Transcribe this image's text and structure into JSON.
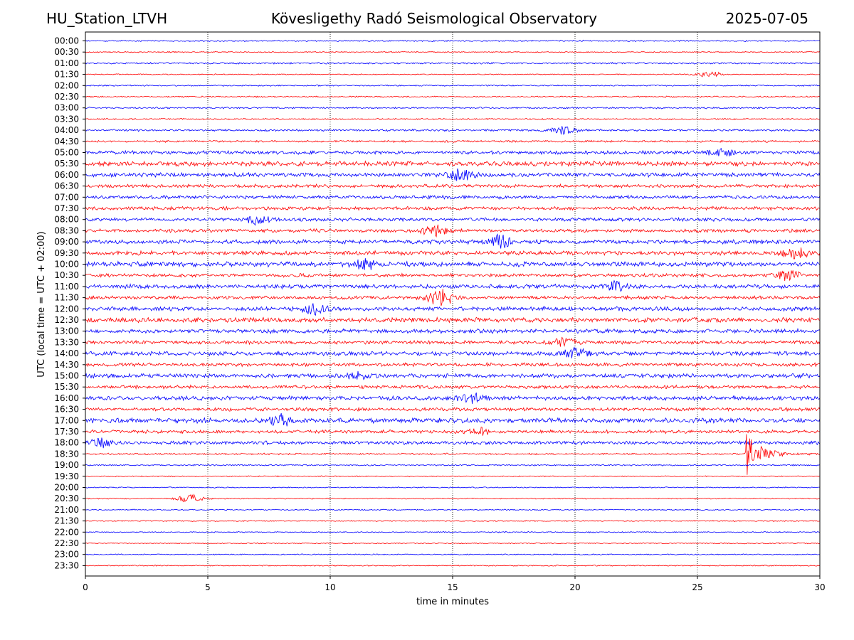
{
  "header": {
    "station": "HU_Station_LTVH",
    "title": "Kövesligethy Radó Seismological Observatory",
    "date": "2025-07-05"
  },
  "chart_data": {
    "type": "line",
    "title": "Kövesligethy Radó Seismological Observatory",
    "xlabel": "time in minutes",
    "ylabel": "UTC (local time = UTC + 02:00)",
    "xlim": [
      0,
      30
    ],
    "x_ticks": [
      0,
      5,
      10,
      15,
      20,
      25,
      30
    ],
    "grid": "vertical dotted lines at x ticks",
    "row_labels": [
      "00:00",
      "00:30",
      "01:00",
      "01:30",
      "02:00",
      "02:30",
      "03:00",
      "03:30",
      "04:00",
      "04:30",
      "05:00",
      "05:30",
      "06:00",
      "06:30",
      "07:00",
      "07:30",
      "08:00",
      "08:30",
      "09:00",
      "09:30",
      "10:00",
      "10:30",
      "11:00",
      "11:30",
      "12:00",
      "12:30",
      "13:00",
      "13:30",
      "14:00",
      "14:30",
      "15:00",
      "15:30",
      "16:00",
      "16:30",
      "17:00",
      "17:30",
      "18:00",
      "18:30",
      "19:00",
      "19:30",
      "20:00",
      "20:30",
      "21:00",
      "21:30",
      "22:00",
      "22:30",
      "23:00",
      "23:30"
    ],
    "row_colors": [
      "#0000ff",
      "#ff0000"
    ],
    "row_noise": [
      0.1,
      0.08,
      0.12,
      0.08,
      0.1,
      0.1,
      0.12,
      0.1,
      0.15,
      0.15,
      0.25,
      0.35,
      0.3,
      0.25,
      0.25,
      0.25,
      0.25,
      0.25,
      0.3,
      0.3,
      0.35,
      0.25,
      0.3,
      0.25,
      0.3,
      0.35,
      0.3,
      0.25,
      0.3,
      0.25,
      0.3,
      0.25,
      0.3,
      0.25,
      0.35,
      0.25,
      0.25,
      0.12,
      0.1,
      0.08,
      0.08,
      0.08,
      0.08,
      0.08,
      0.08,
      0.08,
      0.08,
      0.08
    ],
    "notable_events": [
      {
        "row": "01:30",
        "minute": 25.5,
        "amplitude": 0.5
      },
      {
        "row": "04:00",
        "minute": 19.5,
        "amplitude": 0.6
      },
      {
        "row": "05:00",
        "minute": 26.0,
        "amplitude": 0.7
      },
      {
        "row": "06:00",
        "minute": 15.3,
        "amplitude": 1.0
      },
      {
        "row": "08:00",
        "minute": 7.0,
        "amplitude": 0.8
      },
      {
        "row": "08:30",
        "minute": 14.3,
        "amplitude": 0.9
      },
      {
        "row": "09:00",
        "minute": 17.0,
        "amplitude": 1.1
      },
      {
        "row": "09:30",
        "minute": 29.0,
        "amplitude": 0.8
      },
      {
        "row": "10:00",
        "minute": 11.5,
        "amplitude": 0.8
      },
      {
        "row": "10:30",
        "minute": 28.7,
        "amplitude": 0.8
      },
      {
        "row": "11:00",
        "minute": 21.7,
        "amplitude": 0.7
      },
      {
        "row": "11:30",
        "minute": 14.5,
        "amplitude": 1.5
      },
      {
        "row": "12:00",
        "minute": 9.3,
        "amplitude": 0.9
      },
      {
        "row": "13:30",
        "minute": 19.5,
        "amplitude": 0.7
      },
      {
        "row": "14:00",
        "minute": 20.0,
        "amplitude": 0.8
      },
      {
        "row": "15:00",
        "minute": 11.2,
        "amplitude": 0.7
      },
      {
        "row": "16:00",
        "minute": 15.8,
        "amplitude": 0.8
      },
      {
        "row": "17:00",
        "minute": 8.0,
        "amplitude": 0.9
      },
      {
        "row": "17:30",
        "minute": 16.0,
        "amplitude": 0.6
      },
      {
        "row": "18:00",
        "minute": 0.6,
        "amplitude": 0.8
      },
      {
        "row": "18:30",
        "minute": 27.0,
        "amplitude": 4.3
      },
      {
        "row": "20:30",
        "minute": 4.3,
        "amplitude": 0.7
      }
    ]
  }
}
